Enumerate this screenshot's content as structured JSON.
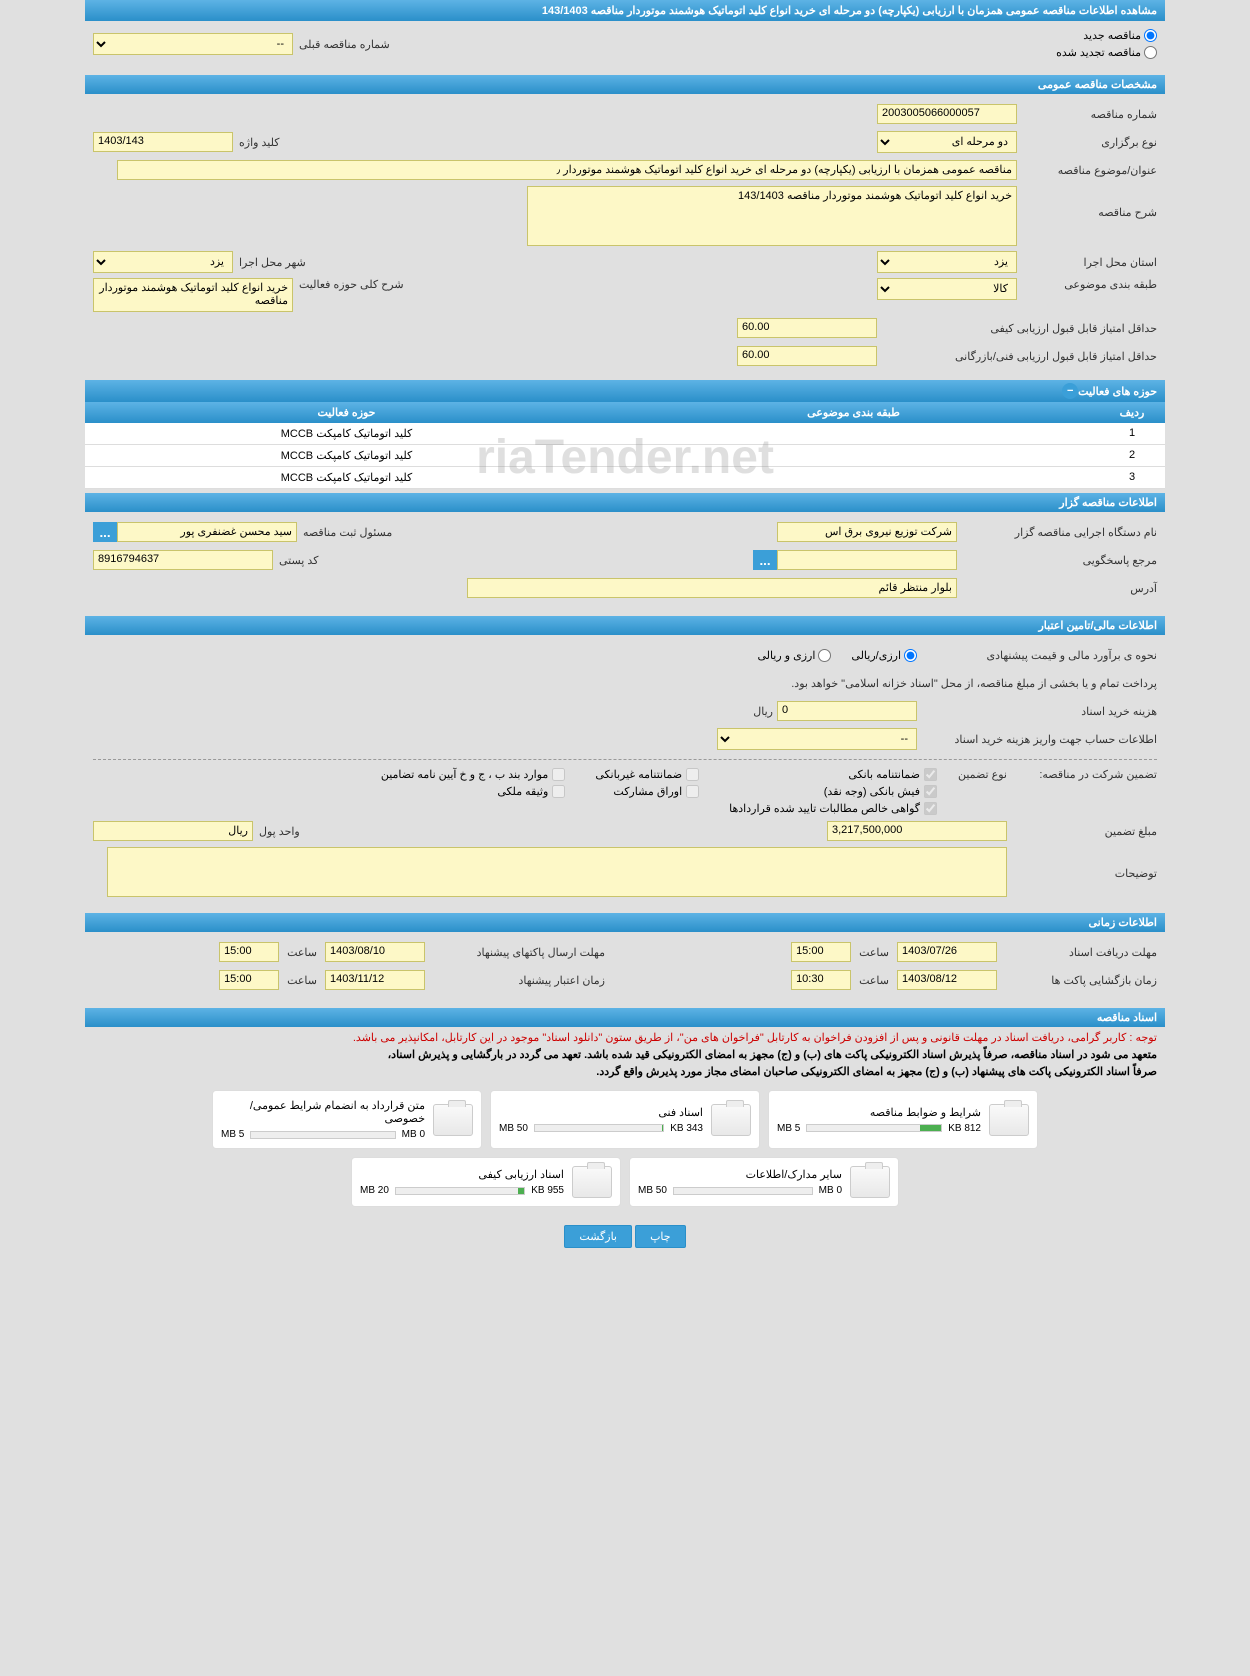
{
  "pageTitle": "مشاهده اطلاعات مناقصه عمومی همزمان با ارزیابی (یکپارچه) دو مرحله ای خرید انواع کلید اتوماتیک هوشمند موتوردار مناقصه 143/1403",
  "topRadios": {
    "new": "مناقصه جدید",
    "renew": "مناقصه تجدید شده",
    "prevLabel": "شماره مناقصه قبلی",
    "prevVal": "--"
  },
  "sections": {
    "general": "مشخصات مناقصه عمومی",
    "activities": "حوزه های فعالیت",
    "organizer": "اطلاعات مناقصه گزار",
    "financial": "اطلاعات مالی/تامین اعتبار",
    "timing": "اطلاعات زمانی",
    "docs": "اسناد مناقصه"
  },
  "general": {
    "tenderNoLabel": "شماره مناقصه",
    "tenderNo": "2003005066000057",
    "typeLabel": "نوع برگزاری",
    "type": "دو مرحله ای",
    "keywordLabel": "کلید واژه",
    "keyword": "1403/143",
    "subjectLabel": "عنوان/موضوع مناقصه",
    "subject": "مناقصه عمومی همزمان با ارزیابی (یکپارچه) دو مرحله ای خرید انواع کلید اتوماتیک هوشمند موتوردار ٫",
    "descLabel": "شرح مناقصه",
    "desc": "خرید انواع کلید اتوماتیک هوشمند موتوردار مناقصه 143/1403",
    "execProvLabel": "استان محل اجرا",
    "execProv": "یزد",
    "execCityLabel": "شهر محل اجرا",
    "execCity": "یزد",
    "catLabel": "طبقه بندی موضوعی",
    "cat": "کالا",
    "scopeLabel": "شرح کلی حوزه فعالیت",
    "scope": "خرید انواع کلید اتوماتیک هوشمند موتوردار مناقصه",
    "minQualLabel": "حداقل امتیاز قابل قبول ارزیابی کیفی",
    "minQual": "60.00",
    "minTechLabel": "حداقل امتیاز قابل قبول ارزیابی فنی/بازرگانی",
    "minTech": "60.00"
  },
  "activityTable": {
    "cols": {
      "idx": "ردیف",
      "cat": "طبقه بندی موضوعی",
      "act": "حوزه فعالیت"
    },
    "rows": [
      {
        "idx": "1",
        "cat": "",
        "act": "کلید اتوماتیک کامپکت MCCB"
      },
      {
        "idx": "2",
        "cat": "",
        "act": "کلید اتوماتیک کامپکت MCCB"
      },
      {
        "idx": "3",
        "cat": "",
        "act": "کلید اتوماتیک کامپکت MCCB"
      }
    ]
  },
  "organizer": {
    "orgLabel": "نام دستگاه اجرایی مناقصه گزار",
    "org": "شرکت توزیع نیروی برق اس",
    "respLabel": "مسئول ثبت مناقصه",
    "resp": "سید محسن  غضنفری پور",
    "refLabel": "مرجع پاسخگویی",
    "ref": "",
    "postLabel": "کد پستی",
    "post": "8916794637",
    "addrLabel": "آدرس",
    "addr": "بلوار منتظر قائم"
  },
  "financial": {
    "estLabel": "نحوه ی برآورد مالی و قیمت پیشنهادی",
    "opt1": "ارزی/ریالی",
    "opt2": "ارزی و ریالی",
    "payNote": "پرداخت تمام و یا بخشی از مبلغ مناقصه، از محل \"اسناد خزانه اسلامی\" خواهد بود.",
    "buyCostLabel": "هزینه خرید اسناد",
    "buyCost": "0",
    "rial": "ریال",
    "depositAcctLabel": "اطلاعات حساب جهت واریز هزینه خرید اسناد",
    "depositAcct": "--",
    "guaranteeLabel": "تضمین شرکت در مناقصه:",
    "typeLabel": "نوع تضمین",
    "g1": "ضمانتنامه بانکی",
    "g2": "ضمانتنامه غیربانکی",
    "g3": "موارد بند ب ، ج و خ آیین نامه تضامین",
    "g4": "فیش بانکی (وجه نقد)",
    "g5": "اوراق مشارکت",
    "g6": "وثیقه ملکی",
    "g7": "گواهی خالص مطالبات تایید شده قراردادها",
    "amtLabel": "مبلغ تضمین",
    "amt": "3,217,500,000",
    "unitLabel": "واحد پول",
    "unit": "ریال",
    "notesLabel": "توضیحات"
  },
  "timing": {
    "recvLabel": "مهلت دریافت اسناد",
    "recvDate": "1403/07/26",
    "timeLabel": "ساعت",
    "recvTime": "15:00",
    "sendLabel": "مهلت ارسال پاکتهای پیشنهاد",
    "sendDate": "1403/08/10",
    "sendTime": "15:00",
    "openLabel": "زمان بازگشایی پاکت ها",
    "openDate": "1403/08/12",
    "openTime": "10:30",
    "validLabel": "زمان اعتبار پیشنهاد",
    "validDate": "1403/11/12",
    "validTime": "15:00"
  },
  "docs": {
    "redNote": "توجه : کاربر گرامی، دریافت اسناد در مهلت قانونی و پس از افزودن فراخوان به کارتابل \"فراخوان های من\"، از طریق ستون \"دانلود اسناد\" موجود در این کارتابل، امکانپذیر می باشد.",
    "blackNote1": "متعهد می شود در اسناد مناقصه، صرفاً پذیرش اسناد الکترونیکی پاکت های (ب) و (ج) مجهز به امضای الکترونیکی قید شده باشد. تعهد می گردد در بارگشایی و پذیرش اسناد،",
    "blackNote2": "صرفاً اسناد الکترونیکی پاکت های پیشنهاد (ب) و (ج) مجهز به امضای الکترونیکی صاحبان امضای مجاز مورد پذیرش واقع گردد.",
    "files": [
      {
        "title": "شرایط و ضوابط مناقصه",
        "size": "812 KB",
        "cap": "5 MB",
        "pct": 16
      },
      {
        "title": "اسناد فنی",
        "size": "343 KB",
        "cap": "50 MB",
        "pct": 1
      },
      {
        "title": "متن قرارداد به انضمام شرایط عمومی/خصوصی",
        "size": "0 MB",
        "cap": "5 MB",
        "pct": 0
      },
      {
        "title": "سایر مدارک/اطلاعات",
        "size": "0 MB",
        "cap": "50 MB",
        "pct": 0
      },
      {
        "title": "اسناد ارزیابی کیفی",
        "size": "955 KB",
        "cap": "20 MB",
        "pct": 5
      }
    ]
  },
  "buttons": {
    "print": "چاپ",
    "back": "بازگشت"
  },
  "colors": {
    "headerGrad1": "#5db3e5",
    "headerGrad2": "#2a8fc9",
    "field": "#fdf8c7",
    "fieldBorder": "#c9c46b"
  }
}
